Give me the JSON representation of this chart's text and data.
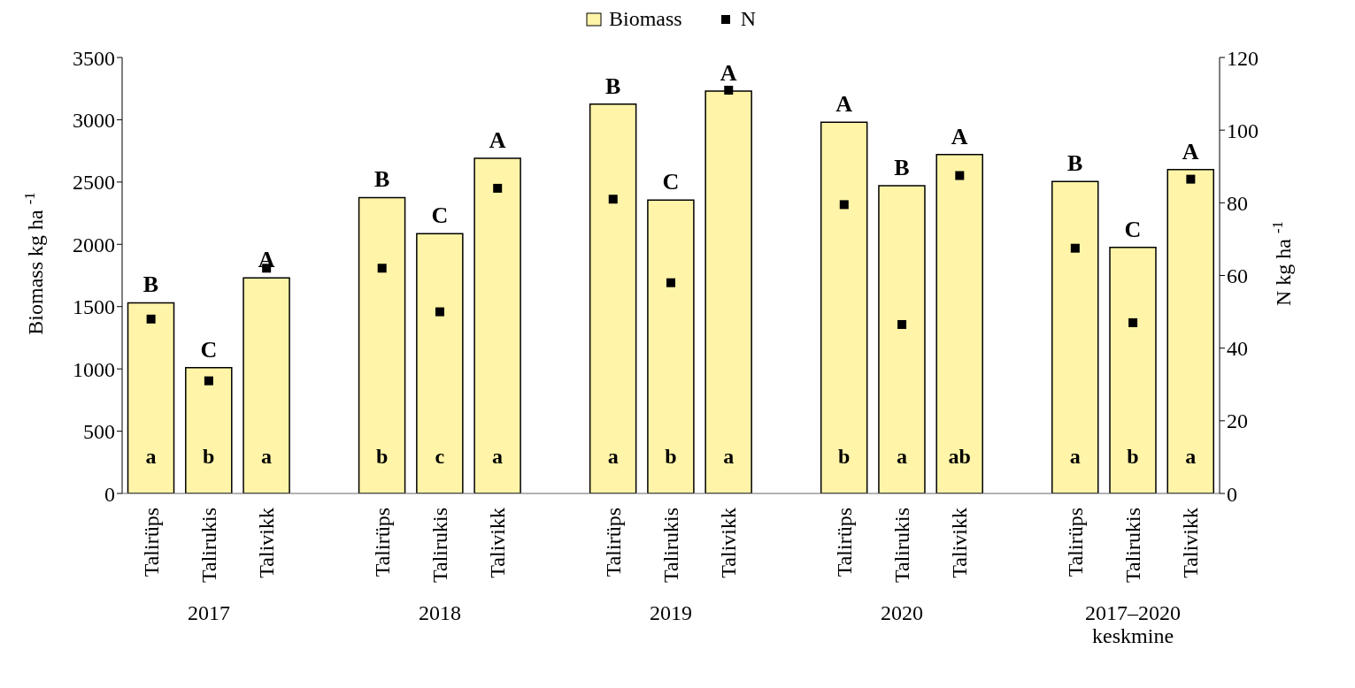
{
  "chart_data": {
    "type": "bar",
    "ylabel": "Biomass kg ha $^{-1}$",
    "y2label": "N kg ha $^{-1}$",
    "categories": [
      "Talirüps",
      "Talirukis",
      "Talivikk",
      null,
      "Talirüps",
      "Talirukis",
      "Talivikk",
      null,
      "Talirüps",
      "Talirukis",
      "Talivikk",
      null,
      "Talirüps",
      "Talirukis",
      "Talivikk",
      null,
      "Talirüps",
      "Talirukis",
      "Talivikk"
    ],
    "series": [
      {
        "name": "Biomass",
        "color": "#fff4a8",
        "values": [
          1530,
          1010,
          1730,
          null,
          2375,
          2085,
          2690,
          null,
          3125,
          2355,
          3230,
          null,
          2980,
          2470,
          2720,
          null,
          2505,
          1975,
          2600
        ],
        "value_labels": [
          "B",
          "C",
          "A",
          null,
          "B",
          "C",
          "A",
          null,
          "B",
          "C",
          "A",
          null,
          "A",
          "B",
          "A",
          null,
          "B",
          "C",
          "A"
        ]
      },
      {
        "name": "N",
        "type": "scatter",
        "axis": "y2",
        "color": "#000000",
        "marker": "square",
        "values": [
          48,
          31,
          62,
          null,
          62,
          50,
          84,
          null,
          81,
          58,
          111,
          null,
          79.5,
          46.5,
          87.5,
          null,
          67.5,
          47,
          86.5
        ]
      }
    ],
    "annotations": [
      "2017",
      "2018",
      "2019",
      "2020",
      "2017–2020 keskmine",
      "a",
      "b",
      "a",
      "b",
      "c",
      "a",
      "a",
      "b",
      "a",
      "b",
      "a",
      "ab",
      "a",
      "b",
      "a"
    ],
    "ylim": [
      0,
      3500
    ],
    "yticks": [
      0,
      500,
      1000,
      1500,
      2000,
      2500,
      3000,
      3500
    ],
    "y2lim": [
      0,
      120
    ],
    "y2ticks": [
      0,
      20,
      40,
      60,
      80,
      100,
      120
    ],
    "legend": "top",
    "grid": false
  }
}
